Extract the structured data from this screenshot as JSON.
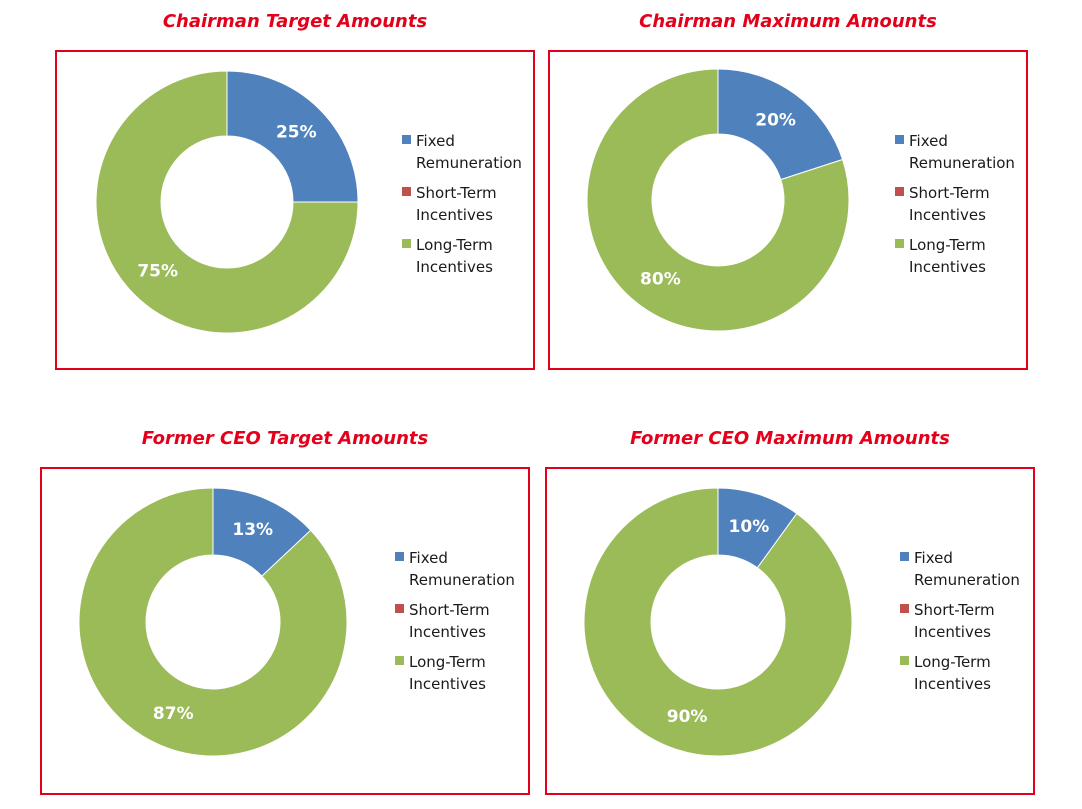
{
  "legend_colors": {
    "fixed": "#4f81bd",
    "short": "#c0504d",
    "long": "#9bbb59"
  },
  "chart_data": [
    {
      "type": "pie",
      "variant": "donut",
      "title": "Chairman Target Amounts",
      "categories": [
        "Fixed\nRemuneration",
        "Short-Term\nIncentives",
        "Long-Term\nIncentives"
      ],
      "values": [
        25,
        0,
        75
      ],
      "labels": [
        "25%",
        "",
        "75%"
      ],
      "colors": [
        "#4f81bd",
        "#c0504d",
        "#9bbb59"
      ],
      "legend_position": "right"
    },
    {
      "type": "pie",
      "variant": "donut",
      "title": "Chairman Maximum Amounts",
      "categories": [
        "Fixed\nRemuneration",
        "Short-Term\nIncentives",
        "Long-Term\nIncentives"
      ],
      "values": [
        20,
        0,
        80
      ],
      "labels": [
        "20%",
        "",
        "80%"
      ],
      "colors": [
        "#4f81bd",
        "#c0504d",
        "#9bbb59"
      ],
      "legend_position": "right"
    },
    {
      "type": "pie",
      "variant": "donut",
      "title": "Former CEO Target Amounts",
      "categories": [
        "Fixed\nRemuneration",
        "Short-Term\nIncentives",
        "Long-Term\nIncentives"
      ],
      "values": [
        13,
        0,
        87
      ],
      "labels": [
        "13%",
        "",
        "87%"
      ],
      "colors": [
        "#4f81bd",
        "#c0504d",
        "#9bbb59"
      ],
      "legend_position": "right"
    },
    {
      "type": "pie",
      "variant": "donut",
      "title": "Former CEO Maximum Amounts",
      "categories": [
        "Fixed\nRemuneration",
        "Short-Term\nIncentives",
        "Long-Term\nIncentives"
      ],
      "values": [
        10,
        0,
        90
      ],
      "labels": [
        "10%",
        "",
        "90%"
      ],
      "colors": [
        "#4f81bd",
        "#c0504d",
        "#9bbb59"
      ],
      "legend_position": "right"
    }
  ]
}
